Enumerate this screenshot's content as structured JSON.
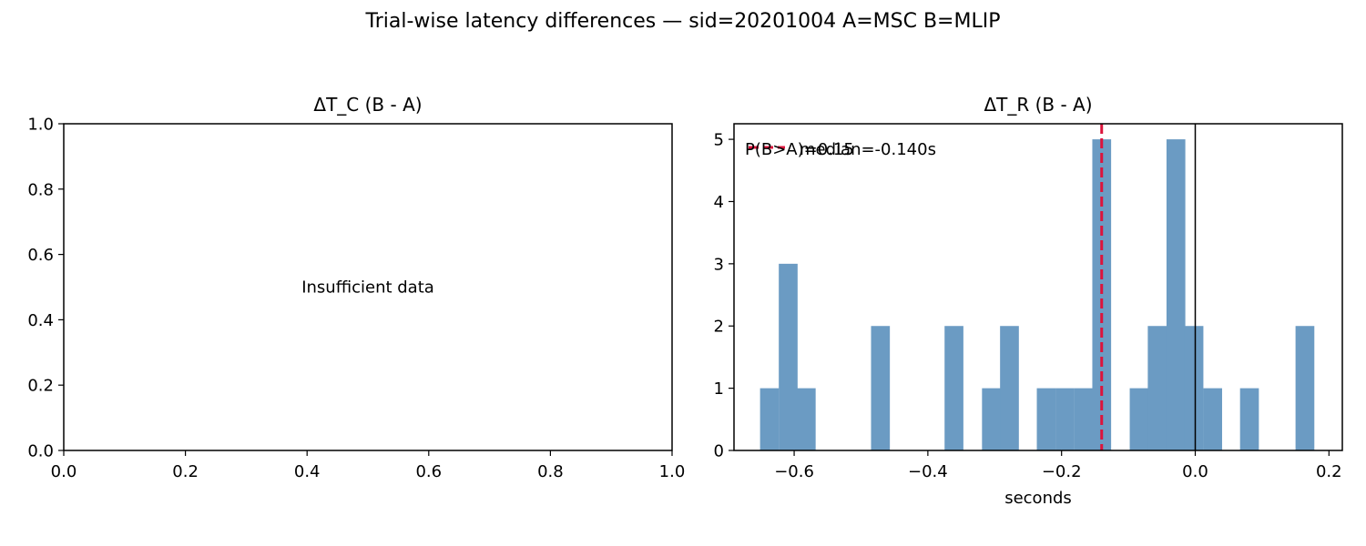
{
  "figure": {
    "suptitle": "Trial-wise latency differences — sid=20201004  A=MSC  B=MLIP"
  },
  "colors": {
    "bar": "#6b9bc3",
    "median_line": "#dc143c",
    "axis": "#000000"
  },
  "chart_data": [
    {
      "type": "empty",
      "title": "ΔT_C (B - A)",
      "xlabel": "",
      "ylabel": "",
      "xlim": [
        0,
        1
      ],
      "ylim": [
        0,
        1
      ],
      "xticks": [
        0.0,
        0.2,
        0.4,
        0.6,
        0.8,
        1.0
      ],
      "xtick_labels": [
        "0.0",
        "0.2",
        "0.4",
        "0.6",
        "0.8",
        "1.0"
      ],
      "yticks": [
        0.0,
        0.2,
        0.4,
        0.6,
        0.8,
        1.0
      ],
      "ytick_labels": [
        "0.0",
        "0.2",
        "0.4",
        "0.6",
        "0.8",
        "1.0"
      ],
      "message": "Insufficient data"
    },
    {
      "type": "bar",
      "subtype": "histogram",
      "title": "ΔT_R (B - A)",
      "xlabel": "seconds",
      "ylabel": "",
      "xlim": [
        -0.69,
        0.22
      ],
      "ylim": [
        0,
        5.25
      ],
      "bin_width": 0.0276,
      "bins": [
        {
          "left": -0.651,
          "count": 1
        },
        {
          "left": -0.623,
          "count": 3
        },
        {
          "left": -0.596,
          "count": 1
        },
        {
          "left": -0.485,
          "count": 2
        },
        {
          "left": -0.375,
          "count": 2
        },
        {
          "left": -0.319,
          "count": 1
        },
        {
          "left": -0.292,
          "count": 2
        },
        {
          "left": -0.237,
          "count": 1
        },
        {
          "left": -0.209,
          "count": 1
        },
        {
          "left": -0.181,
          "count": 1
        },
        {
          "left": -0.154,
          "count": 5
        },
        {
          "left": -0.098,
          "count": 1
        },
        {
          "left": -0.071,
          "count": 2
        },
        {
          "left": -0.043,
          "count": 5
        },
        {
          "left": -0.016,
          "count": 2
        },
        {
          "left": 0.012,
          "count": 1
        },
        {
          "left": 0.067,
          "count": 1
        },
        {
          "left": 0.15,
          "count": 2
        }
      ],
      "median": -0.14,
      "zero_line": 0.0,
      "xticks": [
        -0.6,
        -0.4,
        -0.2,
        0.0,
        0.2
      ],
      "xtick_labels": [
        "−0.6",
        "−0.4",
        "−0.2",
        "0.0",
        "0.2"
      ],
      "yticks": [
        0,
        1,
        2,
        3,
        4,
        5
      ],
      "ytick_labels": [
        "0",
        "1",
        "2",
        "3",
        "4",
        "5"
      ],
      "legend": {
        "entries": [
          {
            "label": "median=-0.140s",
            "style": "dashed"
          }
        ],
        "placement": "upper-left"
      },
      "annotation": "P(B>A)=0.15"
    }
  ]
}
